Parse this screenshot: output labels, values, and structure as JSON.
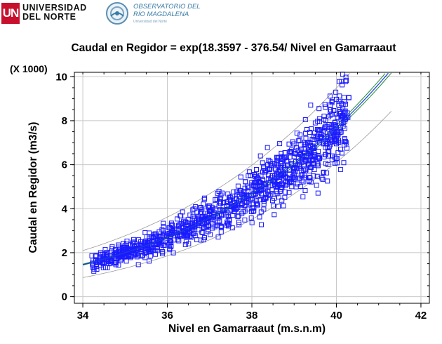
{
  "header": {
    "university_logo_mark": "UN",
    "university_name_line1": "UNIVERSIDAD",
    "university_name_line2": "DEL NORTE",
    "observatory_line1": "OBSERVATORIO DEL",
    "observatory_line2": "RÍO MAGDALENA",
    "observatory_tagline": "Universidad del Norte"
  },
  "colors": {
    "points": "#1a1aff",
    "fit_line": "#1a3fd6",
    "confidence_band": "#1f8a3a",
    "prediction_band": "#9a9a9a",
    "grid": "#c8c8c8",
    "axis": "#000000"
  },
  "chart_data": {
    "type": "scatter",
    "title": "Caudal en  Regidor = exp(18.3597 - 376.54/ Nivel en Gamarraaut",
    "xlabel": "Nivel en Gamarraaut (m.s.n.m)",
    "ylabel": "Caudal en Regidor  (m3/s)",
    "y_multiplier_label": "(X 1000)",
    "xlim": [
      33.8,
      42.2
    ],
    "ylim": [
      -0.3,
      10.2
    ],
    "xticks": [
      34,
      36,
      38,
      40,
      42
    ],
    "yticks": [
      0,
      2,
      4,
      6,
      8,
      10
    ],
    "grid": true,
    "model": {
      "a": 18.3597,
      "b": 376.54,
      "form": "y = exp(a - b/x)",
      "y_units": "thousands m3/s"
    },
    "fit_x_range": [
      34.0,
      41.3
    ],
    "prediction_band_factor": 0.78,
    "confidence_band_factor": 0.015,
    "scatter_x_range": [
      34.2,
      40.3
    ],
    "scatter_residual_spread": 0.13,
    "scatter_count": 1100,
    "scatter_extra_points": [
      [
        39.3,
        7.6
      ],
      [
        39.5,
        7.9
      ],
      [
        39.7,
        8.05
      ],
      [
        39.85,
        8.25
      ],
      [
        40.0,
        8.3
      ],
      [
        40.15,
        8.2
      ],
      [
        40.2,
        7.95
      ],
      [
        40.1,
        7.7
      ],
      [
        39.95,
        7.45
      ],
      [
        39.75,
        7.2
      ],
      [
        39.6,
        7.0
      ],
      [
        39.45,
        6.85
      ],
      [
        39.35,
        6.7
      ],
      [
        39.8,
        6.6
      ],
      [
        40.0,
        6.95
      ],
      [
        40.2,
        7.05
      ],
      [
        40.25,
        6.75
      ],
      [
        39.9,
        6.4
      ],
      [
        39.6,
        6.3
      ]
    ]
  }
}
